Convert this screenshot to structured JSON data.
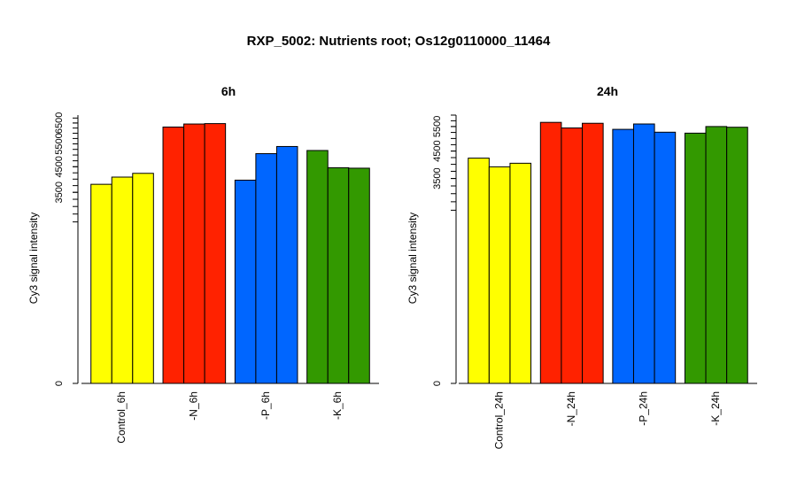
{
  "title": "RXP_5002: Nutrients root; Os12g0110000_11464",
  "chart_data": [
    {
      "type": "bar",
      "title": "6h",
      "ylabel": "Cy3 signal intensity",
      "ylim": [
        0,
        6900
      ],
      "yticks": [
        0,
        3500,
        4500,
        5500,
        6500
      ],
      "scale": "sqrt",
      "groups": [
        {
          "label": "Control_6h",
          "color": "#ffff00",
          "values": [
            3800,
            4080,
            4230
          ]
        },
        {
          "label": "-N_6h",
          "color": "#ff2200",
          "values": [
            6300,
            6450,
            6470
          ]
        },
        {
          "label": "-P_6h",
          "color": "#0066ff",
          "values": [
            3960,
            5060,
            5380
          ]
        },
        {
          "label": "-K_6h",
          "color": "#339900",
          "values": [
            5200,
            4460,
            4440
          ]
        }
      ]
    },
    {
      "type": "bar",
      "title": "24h",
      "ylabel": "Cy3 signal intensity",
      "ylim": [
        0,
        6000
      ],
      "yticks": [
        0,
        3500,
        4500,
        5500
      ],
      "scale": "sqrt",
      "groups": [
        {
          "label": "Control_24h",
          "color": "#ffff00",
          "values": [
            4230,
            3910,
            4040
          ]
        },
        {
          "label": "-N_24h",
          "color": "#ff2200",
          "values": [
            5680,
            5440,
            5640
          ]
        },
        {
          "label": "-P_24h",
          "color": "#0066ff",
          "values": [
            5380,
            5610,
            5260
          ]
        },
        {
          "label": "-K_24h",
          "color": "#339900",
          "values": [
            5220,
            5500,
            5470
          ]
        }
      ]
    }
  ]
}
